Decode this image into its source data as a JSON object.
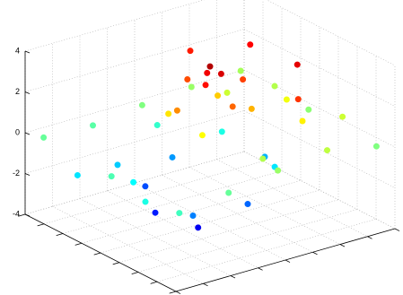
{
  "chart_data": {
    "type": "scatter3d",
    "colormap": "jet",
    "grid": true,
    "xlim": [
      -4,
      4
    ],
    "xticks": [
      -4,
      -3,
      -2,
      -1,
      0,
      1,
      2,
      3,
      4
    ],
    "ylim": [
      -4,
      4
    ],
    "yticks": [
      -4,
      -3,
      -2,
      -1,
      0,
      1,
      2,
      3,
      4
    ],
    "zlim": [
      -4,
      4
    ],
    "zticks": [
      -4,
      -2,
      0,
      2,
      4
    ],
    "x": [
      0,
      0.3,
      -0.3,
      0.2,
      1.2,
      -1.2,
      0,
      0,
      0.9,
      -0.9,
      0.9,
      -0.9,
      2,
      -2,
      0,
      0,
      1.4,
      -1.4,
      1.4,
      -1.4,
      2.8,
      -2.8,
      0,
      0,
      2,
      -2,
      2,
      -2,
      3.6,
      -3.6,
      3.6,
      -3.6,
      3.6,
      -3.6,
      0,
      0,
      3.6,
      -3.6,
      1.8,
      -1.8,
      3.6,
      -3.6,
      1.8,
      -1.8,
      -2.5,
      -1.5,
      1,
      2.5
    ],
    "y": [
      0,
      0.2,
      0.1,
      -0.3,
      0,
      0,
      1.2,
      -1.2,
      0.9,
      -0.9,
      -0.9,
      0.9,
      0,
      0,
      2,
      -2,
      1.4,
      -1.4,
      -1.4,
      1.4,
      0,
      0,
      2.8,
      -2.8,
      2,
      -2,
      -2,
      2,
      3.6,
      -3.6,
      -3.6,
      3.6,
      0,
      0,
      3.6,
      -3.6,
      1.8,
      -1.8,
      -3.6,
      3.6,
      -1.8,
      1.8,
      3.6,
      -3.6,
      1,
      2.5,
      2.5,
      1.5
    ],
    "z": [
      3.6,
      3.3,
      3.1,
      2.9,
      2.2,
      2.4,
      2.5,
      1.9,
      1.6,
      1.2,
      1.0,
      1.4,
      -2.2,
      -1.8,
      -1.6,
      -2.8,
      -1.2,
      -2.4,
      -3.1,
      -0.8,
      0.4,
      -0.6,
      0.9,
      -1.0,
      1.1,
      -1.4,
      -2.0,
      0.6,
      0,
      -0.2,
      -0.5,
      0.3,
      0.2,
      0,
      0.1,
      -0.4,
      0.5,
      -0.3,
      -0.8,
      0.4,
      -0.2,
      0.2,
      0.6,
      -1.2,
      2.8,
      3.0,
      3.2,
      2.6
    ]
  }
}
